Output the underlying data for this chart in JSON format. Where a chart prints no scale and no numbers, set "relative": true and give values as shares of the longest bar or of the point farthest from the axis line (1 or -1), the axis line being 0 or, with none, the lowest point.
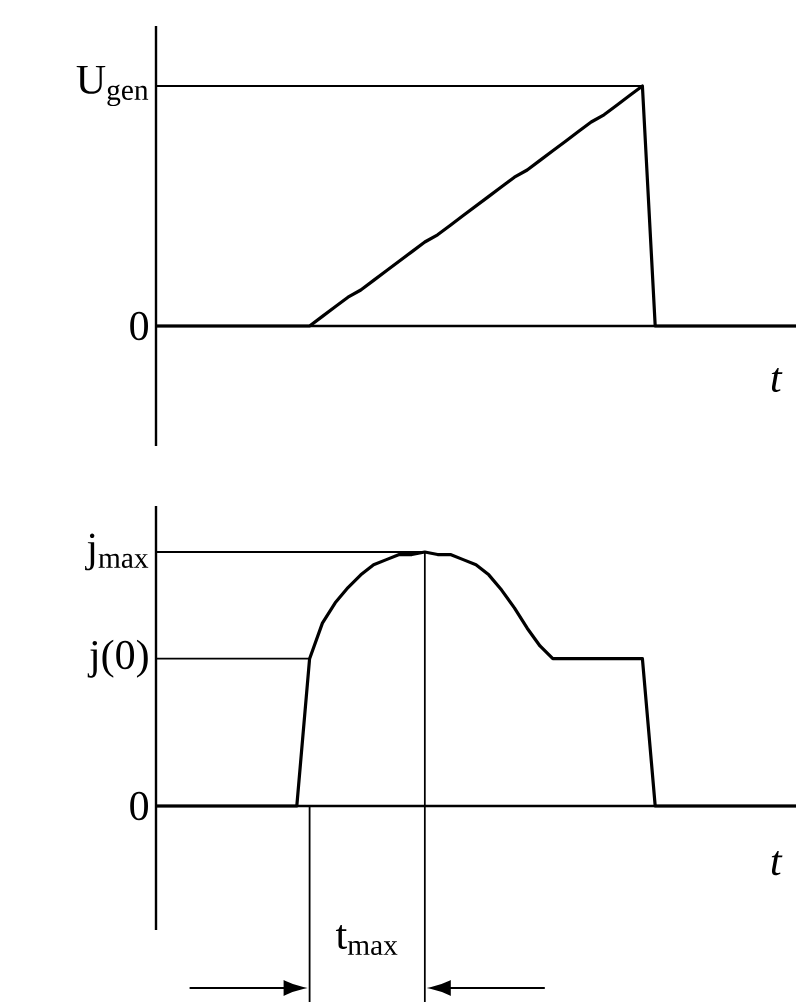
{
  "chart_data": [
    {
      "type": "line",
      "relative": true,
      "xlabel": "t",
      "marker": "none",
      "categories": [
        null,
        null,
        null,
        null,
        null,
        null,
        null,
        null,
        null,
        null,
        null,
        null,
        null,
        null,
        null,
        null,
        null,
        null,
        null,
        null,
        null,
        null,
        null,
        null,
        null,
        null,
        null,
        null,
        null,
        null,
        null,
        null,
        null,
        null,
        null,
        null,
        null,
        null,
        null,
        null,
        null,
        null,
        null,
        null,
        null,
        null,
        null,
        null,
        null,
        null,
        null
      ],
      "series": [
        {
          "color": "#000000",
          "values": [
            0,
            0,
            0,
            0,
            0,
            0,
            0,
            0,
            0,
            0,
            0,
            0,
            0,
            0.04,
            0.08,
            0.12,
            0.15,
            0.19,
            0.23,
            0.27,
            0.31,
            0.35,
            0.38,
            0.42,
            0.46,
            0.5,
            0.54,
            0.58,
            0.62,
            0.65,
            0.69,
            0.73,
            0.77,
            0.81,
            0.85,
            0.88,
            0.92,
            0.96,
            1,
            0,
            0,
            0,
            0,
            0,
            0,
            0,
            0,
            0,
            0,
            0,
            0
          ]
        }
      ],
      "ref_lines": [
        {
          "axis": "y",
          "value": 0,
          "color": "#000000",
          "label": "0"
        },
        {
          "axis": "y",
          "value": 1,
          "color": "#000000",
          "label": "U$_{gen}$"
        }
      ]
    },
    {
      "type": "line",
      "relative": true,
      "xlabel": "t",
      "marker": "none",
      "categories": [
        null,
        null,
        null,
        null,
        null,
        null,
        null,
        null,
        null,
        null,
        null,
        null,
        null,
        null,
        null,
        null,
        null,
        null,
        null,
        null,
        null,
        null,
        null,
        null,
        null,
        null,
        null,
        null,
        null,
        null,
        null,
        null,
        null,
        null,
        null,
        null,
        null,
        null,
        null,
        null,
        null,
        null,
        null,
        null,
        null,
        null,
        null,
        null,
        null,
        null,
        null
      ],
      "series": [
        {
          "color": "#000000",
          "values": [
            0,
            0,
            0,
            0,
            0,
            0,
            0,
            0,
            0,
            0,
            0,
            0,
            0.58,
            0.72,
            0.8,
            0.86,
            0.91,
            0.95,
            0.97,
            0.99,
            0.99,
            1,
            0.99,
            0.99,
            0.97,
            0.95,
            0.91,
            0.85,
            0.78,
            0.7,
            0.63,
            0.58,
            0.58,
            0.58,
            0.58,
            0.58,
            0.58,
            0.58,
            0.58,
            0,
            0,
            0,
            0,
            0,
            0,
            0,
            0,
            0,
            0,
            0,
            0
          ]
        }
      ],
      "ref_lines": [
        {
          "axis": "y",
          "value": 0,
          "color": "#000000",
          "label": "0"
        },
        {
          "axis": "y",
          "value": 0.58,
          "color": "#000000",
          "label": "j(0)"
        },
        {
          "axis": "y",
          "value": 1,
          "color": "#000000",
          "label": "j$_{max}$"
        }
      ],
      "annotations": [
        "t$_{max}$"
      ]
    }
  ]
}
